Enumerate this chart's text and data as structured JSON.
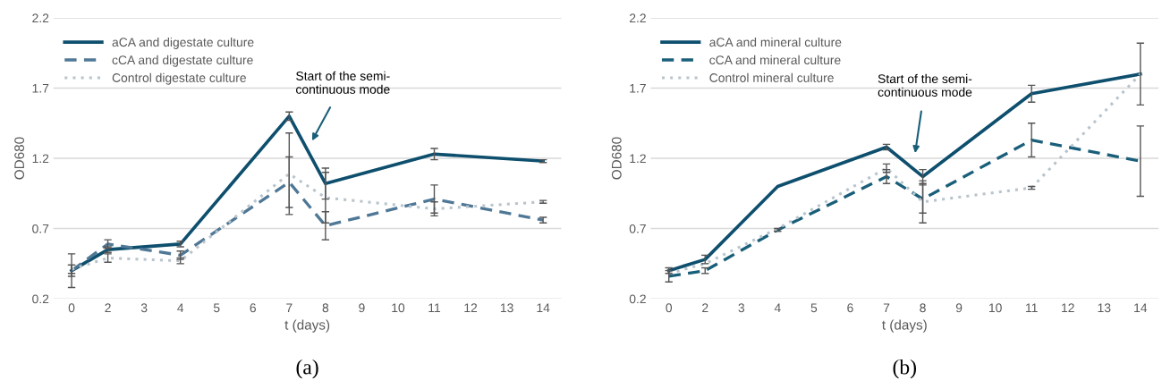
{
  "chart_data": [
    {
      "type": "line",
      "title": "(a)",
      "xlabel": "t (days)",
      "ylabel": "OD680",
      "categories": [
        "0",
        "2",
        "3",
        "4",
        "5",
        "6",
        "7",
        "8",
        "9",
        "10",
        "11",
        "12",
        "13",
        "14"
      ],
      "ylim": [
        0.2,
        2.2
      ],
      "yticks": [
        0.2,
        0.7,
        1.2,
        1.7,
        2.2
      ],
      "grid": "y",
      "legend": "top left",
      "marker": "none",
      "annotations": [
        "Start of the semi-\ncontinuous mode"
      ],
      "series": [
        {
          "name": "aCA and digestate culture",
          "color": "#0e4f6e",
          "line_style": "solid",
          "values": [
            0.4,
            0.55,
            null,
            0.59,
            null,
            null,
            1.5,
            1.02,
            null,
            null,
            1.23,
            null,
            null,
            1.18
          ],
          "errors": [
            0.04,
            0.02,
            null,
            0.02,
            null,
            null,
            0.03,
            0.11,
            null,
            null,
            0.04,
            null,
            null,
            0.01
          ]
        },
        {
          "name": "cCA and digestate culture",
          "color": "#4f7896",
          "line_style": "dashed",
          "values": [
            0.4,
            0.59,
            null,
            0.51,
            null,
            null,
            1.03,
            0.72,
            null,
            null,
            0.91,
            null,
            null,
            0.76
          ],
          "errors": [
            0.12,
            0.03,
            null,
            0.03,
            null,
            null,
            0.18,
            0.1,
            null,
            null,
            0.1,
            null,
            null,
            0.02
          ]
        },
        {
          "name": "Control digestate culture",
          "color": "#b8c4cc",
          "line_style": "dotted",
          "values": [
            0.41,
            0.49,
            null,
            0.47,
            null,
            null,
            1.09,
            0.92,
            null,
            null,
            0.84,
            null,
            null,
            0.89
          ],
          "errors": [
            0.03,
            0.03,
            null,
            0.02,
            null,
            null,
            0.29,
            0.18,
            null,
            null,
            0.05,
            null,
            null,
            0.01
          ]
        }
      ]
    },
    {
      "type": "line",
      "title": "(b)",
      "xlabel": "t (days)",
      "ylabel": "OD680",
      "categories": [
        "0",
        "2",
        "3",
        "4",
        "5",
        "6",
        "7",
        "8",
        "9",
        "10",
        "11",
        "12",
        "13",
        "14"
      ],
      "ylim": [
        0.2,
        2.2
      ],
      "yticks": [
        0.2,
        0.7,
        1.2,
        1.7,
        2.2
      ],
      "grid": "y",
      "legend": "top left",
      "marker": "none",
      "annotations": [
        "Start of the semi-\ncontinuous mode"
      ],
      "series": [
        {
          "name": "aCA and mineral culture",
          "color": "#0e4f6e",
          "line_style": "solid",
          "values": [
            0.4,
            0.48,
            null,
            1.0,
            null,
            null,
            1.28,
            1.07,
            null,
            null,
            1.66,
            null,
            null,
            1.8
          ],
          "errors": [
            0.02,
            0.03,
            null,
            null,
            null,
            null,
            0.02,
            0.05,
            null,
            null,
            0.06,
            null,
            null,
            0.22
          ]
        },
        {
          "name": "cCA and mineral culture",
          "color": "#1a5f7a",
          "line_style": "dashed",
          "values": [
            0.36,
            0.4,
            null,
            0.69,
            null,
            null,
            1.07,
            0.91,
            null,
            null,
            1.33,
            null,
            null,
            1.18
          ],
          "errors": [
            0.04,
            0.02,
            null,
            0.01,
            null,
            null,
            0.05,
            0.1,
            null,
            null,
            0.12,
            null,
            null,
            0.25
          ]
        },
        {
          "name": "Control mineral culture",
          "color": "#b8c4cc",
          "line_style": "dotted",
          "values": [
            0.38,
            0.45,
            null,
            0.7,
            null,
            null,
            1.13,
            0.89,
            null,
            null,
            0.99,
            null,
            null,
            1.8
          ],
          "errors": [
            null,
            null,
            null,
            null,
            null,
            null,
            0.03,
            0.15,
            null,
            null,
            0.01,
            null,
            null,
            null
          ]
        }
      ]
    }
  ]
}
